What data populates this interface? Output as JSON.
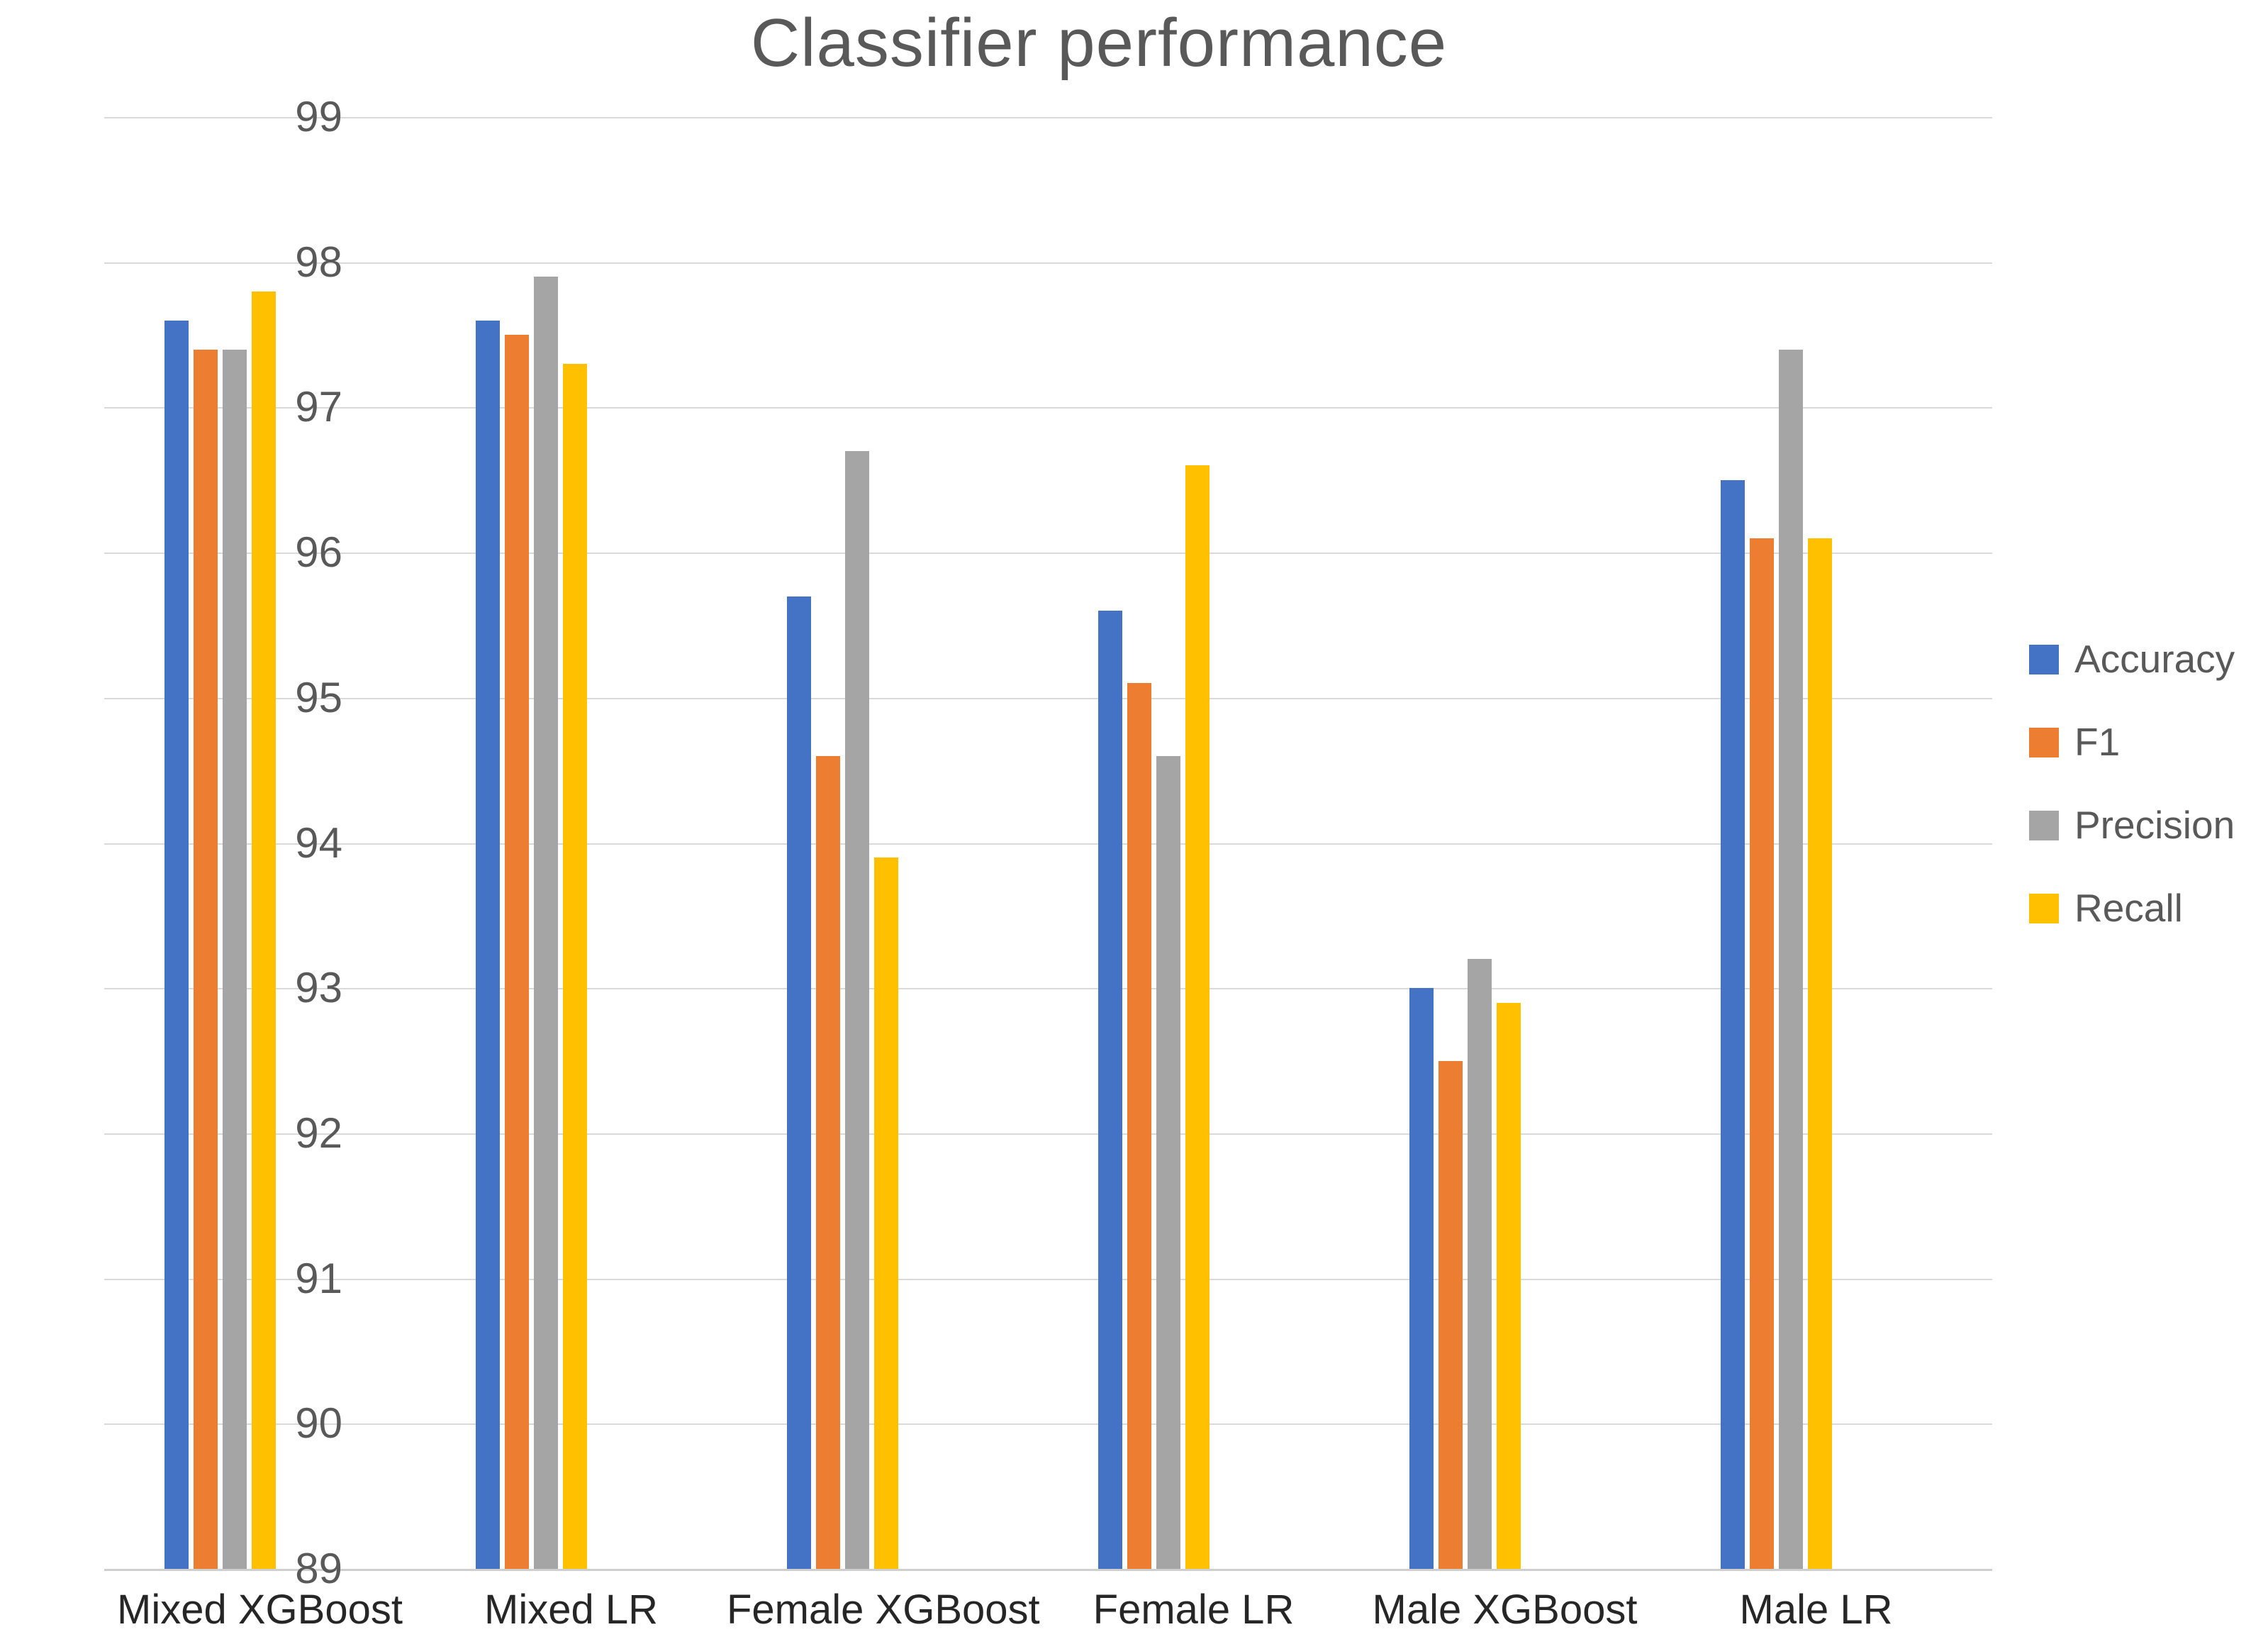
{
  "chart_data": {
    "type": "bar",
    "title": "Classifier performance",
    "categories": [
      "Mixed XGBoost",
      "Mixed LR",
      "Female XGBoost",
      "Female LR",
      "Male XGBoost",
      "Male LR"
    ],
    "series": [
      {
        "name": "Accuracy",
        "color": "#4472C4",
        "values": [
          97.6,
          97.6,
          95.7,
          95.6,
          93.0,
          96.5
        ]
      },
      {
        "name": "F1",
        "color": "#ED7D31",
        "values": [
          97.4,
          97.5,
          94.6,
          95.1,
          92.5,
          96.1
        ]
      },
      {
        "name": "Precision",
        "color": "#A5A5A5",
        "values": [
          97.4,
          97.9,
          96.7,
          94.6,
          93.2,
          97.4
        ]
      },
      {
        "name": "Recall",
        "color": "#FFC000",
        "values": [
          97.8,
          97.3,
          93.9,
          96.6,
          92.9,
          96.1
        ]
      }
    ],
    "ylim": [
      89,
      99
    ],
    "ytick_step": 1,
    "yticks": [
      "99",
      "98",
      "97",
      "96",
      "95",
      "94",
      "93",
      "92",
      "91",
      "90",
      "89"
    ],
    "grid": true,
    "legend_position": "right",
    "style": {
      "gridline_color": "#dadada",
      "axis_line_color": "#cfcfcf",
      "title_color": "#595959",
      "ytick_color": "#595959",
      "xtick_color": "#262626",
      "legend_text_color": "#595959",
      "background": "#ffffff"
    }
  }
}
